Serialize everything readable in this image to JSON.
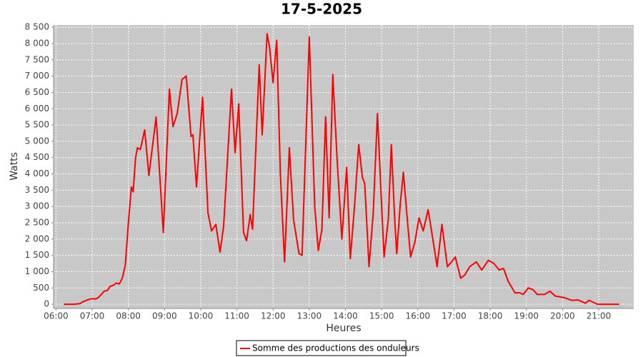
{
  "chart_data": {
    "type": "line",
    "title": "17-5-2025",
    "x_label": "Heures",
    "y_label": "Watts",
    "x": [
      "06:13",
      "06:30",
      "06:40",
      "06:45",
      "06:55",
      "07:00",
      "07:05",
      "07:10",
      "07:15",
      "07:20",
      "07:25",
      "07:30",
      "07:35",
      "07:40",
      "07:45",
      "07:50",
      "07:55",
      "08:00",
      "08:05",
      "08:08",
      "08:12",
      "08:15",
      "08:20",
      "08:27",
      "08:34",
      "08:46",
      "08:58",
      "09:08",
      "09:14",
      "09:21",
      "09:29",
      "09:36",
      "09:44",
      "09:47",
      "09:53",
      "10:03",
      "10:12",
      "10:18",
      "10:25",
      "10:32",
      "10:38",
      "10:51",
      "10:57",
      "11:03",
      "11:11",
      "11:16",
      "11:22",
      "11:26",
      "11:37",
      "11:42",
      "11:50",
      "11:54",
      "12:00",
      "12:06",
      "12:12",
      "12:19",
      "12:27",
      "12:34",
      "12:43",
      "12:48",
      "13:00",
      "13:09",
      "13:15",
      "13:21",
      "13:27",
      "13:33",
      "13:39",
      "13:46",
      "13:54",
      "14:02",
      "14:08",
      "14:15",
      "14:22",
      "14:28",
      "14:32",
      "14:39",
      "14:46",
      "14:53",
      "15:00",
      "15:04",
      "15:11",
      "15:16",
      "15:22",
      "15:25",
      "15:31",
      "15:36",
      "15:43",
      "15:48",
      "15:55",
      "16:02",
      "16:09",
      "16:17",
      "16:24",
      "16:32",
      "16:40",
      "16:49",
      "16:56",
      "17:02",
      "17:11",
      "17:18",
      "17:26",
      "17:37",
      "17:46",
      "17:57",
      "18:06",
      "18:15",
      "18:22",
      "18:30",
      "18:41",
      "18:49",
      "18:55",
      "19:03",
      "19:11",
      "19:18",
      "19:30",
      "19:39",
      "19:48",
      "20:03",
      "20:15",
      "20:26",
      "20:38",
      "20:44",
      "20:58",
      "21:34"
    ],
    "series": [
      {
        "name": "Somme des productions des onduleurs",
        "color": "#ff0000",
        "values": [
          0,
          0,
          20,
          80,
          150,
          170,
          160,
          200,
          300,
          400,
          420,
          550,
          580,
          650,
          620,
          800,
          1200,
          2500,
          3600,
          3450,
          4500,
          4800,
          4750,
          5350,
          3950,
          5750,
          2200,
          6600,
          5450,
          5850,
          6900,
          7000,
          5150,
          5200,
          3600,
          6350,
          2800,
          2250,
          2450,
          1600,
          2400,
          6600,
          4650,
          6150,
          2200,
          1950,
          2750,
          2300,
          7350,
          5200,
          8300,
          7900,
          6800,
          8100,
          4000,
          1300,
          4800,
          2600,
          1550,
          1500,
          8200,
          3000,
          1650,
          2300,
          5750,
          2650,
          7050,
          4500,
          2000,
          4200,
          1400,
          3000,
          4900,
          3900,
          3700,
          1150,
          2800,
          5850,
          3000,
          1450,
          2600,
          4900,
          2500,
          1550,
          3100,
          4050,
          2500,
          1450,
          1900,
          2650,
          2250,
          2900,
          2100,
          1150,
          2450,
          1150,
          1300,
          1450,
          800,
          900,
          1150,
          1300,
          1050,
          1350,
          1250,
          1050,
          1100,
          700,
          350,
          350,
          300,
          500,
          450,
          300,
          300,
          400,
          250,
          200,
          120,
          130,
          30,
          120,
          0,
          0
        ]
      }
    ],
    "xlim": [
      "05:56",
      "21:58"
    ],
    "xticks": [
      "06:00",
      "07:00",
      "08:00",
      "09:00",
      "10:00",
      "11:00",
      "12:00",
      "13:00",
      "14:00",
      "15:00",
      "16:00",
      "17:00",
      "18:00",
      "19:00",
      "20:00",
      "21:00"
    ],
    "ylim": [
      -130,
      8570
    ],
    "yticks": [
      0,
      500,
      {
        "value": 1000,
        "label": "1 000"
      },
      {
        "value": 1500,
        "label": "1 500"
      },
      {
        "value": 2000,
        "label": "2 000"
      },
      {
        "value": 2500,
        "label": "2 500"
      },
      {
        "value": 3000,
        "label": "3 000"
      },
      {
        "value": 3500,
        "label": "3 500"
      },
      {
        "value": 4000,
        "label": "4 000"
      },
      {
        "value": 4500,
        "label": "4 500"
      },
      {
        "value": 5000,
        "label": "5 000"
      },
      {
        "value": 5500,
        "label": "5 500"
      },
      {
        "value": 6000,
        "label": "6 000"
      },
      {
        "value": 6500,
        "label": "6 500"
      },
      {
        "value": 7000,
        "label": "7 000"
      },
      {
        "value": 7500,
        "label": "7 500"
      },
      {
        "value": 8000,
        "label": "8 000"
      },
      {
        "value": 8500,
        "label": "8 500"
      }
    ],
    "grid": true,
    "legend": "bottom"
  }
}
